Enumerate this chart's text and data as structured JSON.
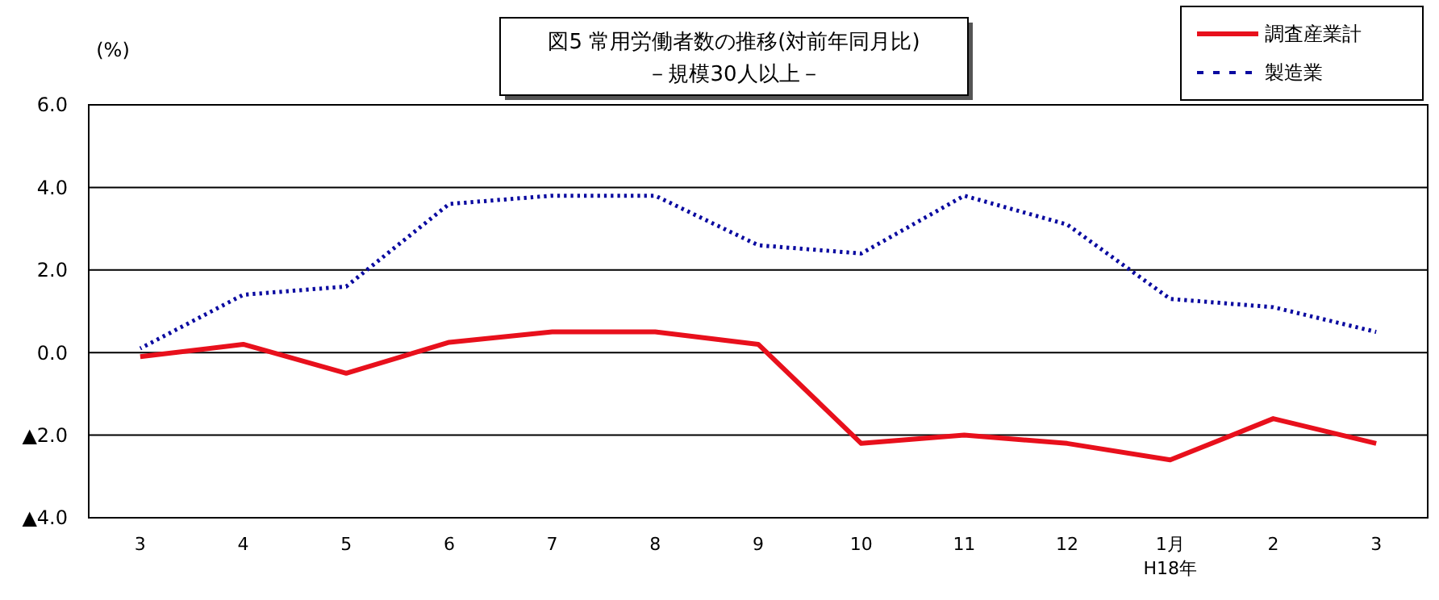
{
  "chart_data": {
    "type": "line",
    "title": "図5  常用労働者数の推移(対前年同月比)",
    "subtitle": "－規模30人以上－",
    "ylabel": "(%)",
    "categories": [
      "3",
      "4",
      "5",
      "6",
      "7",
      "8",
      "9",
      "10",
      "11",
      "12",
      "1月\nH18年",
      "2",
      "3"
    ],
    "series": [
      {
        "name": "調査産業計",
        "color": "#e8101c",
        "line_style": "solid",
        "values": [
          -0.1,
          0.2,
          -0.5,
          0.25,
          0.5,
          0.5,
          0.2,
          -2.2,
          -2.0,
          -2.2,
          -2.6,
          -1.6,
          -2.2
        ]
      },
      {
        "name": "製造業",
        "color": "#0a0aa0",
        "line_style": "dotted",
        "values": [
          0.1,
          1.4,
          1.6,
          3.6,
          3.8,
          3.8,
          2.6,
          2.4,
          3.8,
          3.1,
          1.3,
          1.1,
          0.5
        ]
      }
    ],
    "ylim": [
      -4,
      6
    ],
    "yticks": [
      {
        "value": -4,
        "label": "▲4.0"
      },
      {
        "value": -2,
        "label": "▲2.0"
      },
      {
        "value": 0,
        "label": "0.0"
      },
      {
        "value": 2,
        "label": "2.0"
      },
      {
        "value": 4,
        "label": "4.0"
      },
      {
        "value": 6,
        "label": "6.0"
      }
    ],
    "grid": "y",
    "legend": "top right",
    "marker": "none"
  }
}
